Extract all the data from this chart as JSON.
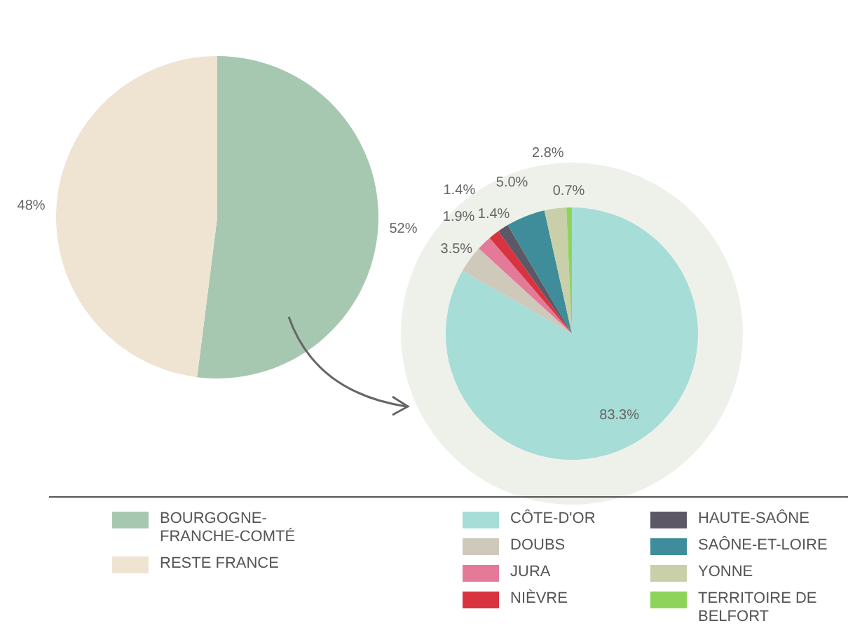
{
  "chart_data": [
    {
      "type": "pie",
      "categories": [
        "BOURGOGNE-\nFRANCHE-COMTÉ",
        "RESTE FRANCE"
      ],
      "values": [
        52,
        48
      ],
      "colors": [
        "#a7c8b0",
        "#efe4d2"
      ],
      "value_labels": [
        "52%",
        "48%"
      ],
      "legend": "bottom"
    },
    {
      "type": "pie",
      "categories": [
        "CÔTE-D'OR",
        "DOUBS",
        "JURA",
        "NIÈVRE",
        "HAUTE-SAÔNE",
        "SAÔNE-ET-LOIRE",
        "YONNE",
        "TERRITOIRE DE\nBELFORT"
      ],
      "values": [
        83.3,
        3.5,
        1.9,
        1.4,
        1.4,
        5.0,
        2.8,
        0.7
      ],
      "colors": [
        "#a6ddd6",
        "#cfc9bb",
        "#e57a98",
        "#d9333f",
        "#5c5866",
        "#3f8d9a",
        "#c9cfa8",
        "#8fd45a"
      ],
      "value_labels": [
        "83.3%",
        "3.5%",
        "1.9%",
        "1.4%",
        "1.4%",
        "5.0%",
        "2.8%",
        "0.7%"
      ],
      "legend": "bottom"
    }
  ]
}
